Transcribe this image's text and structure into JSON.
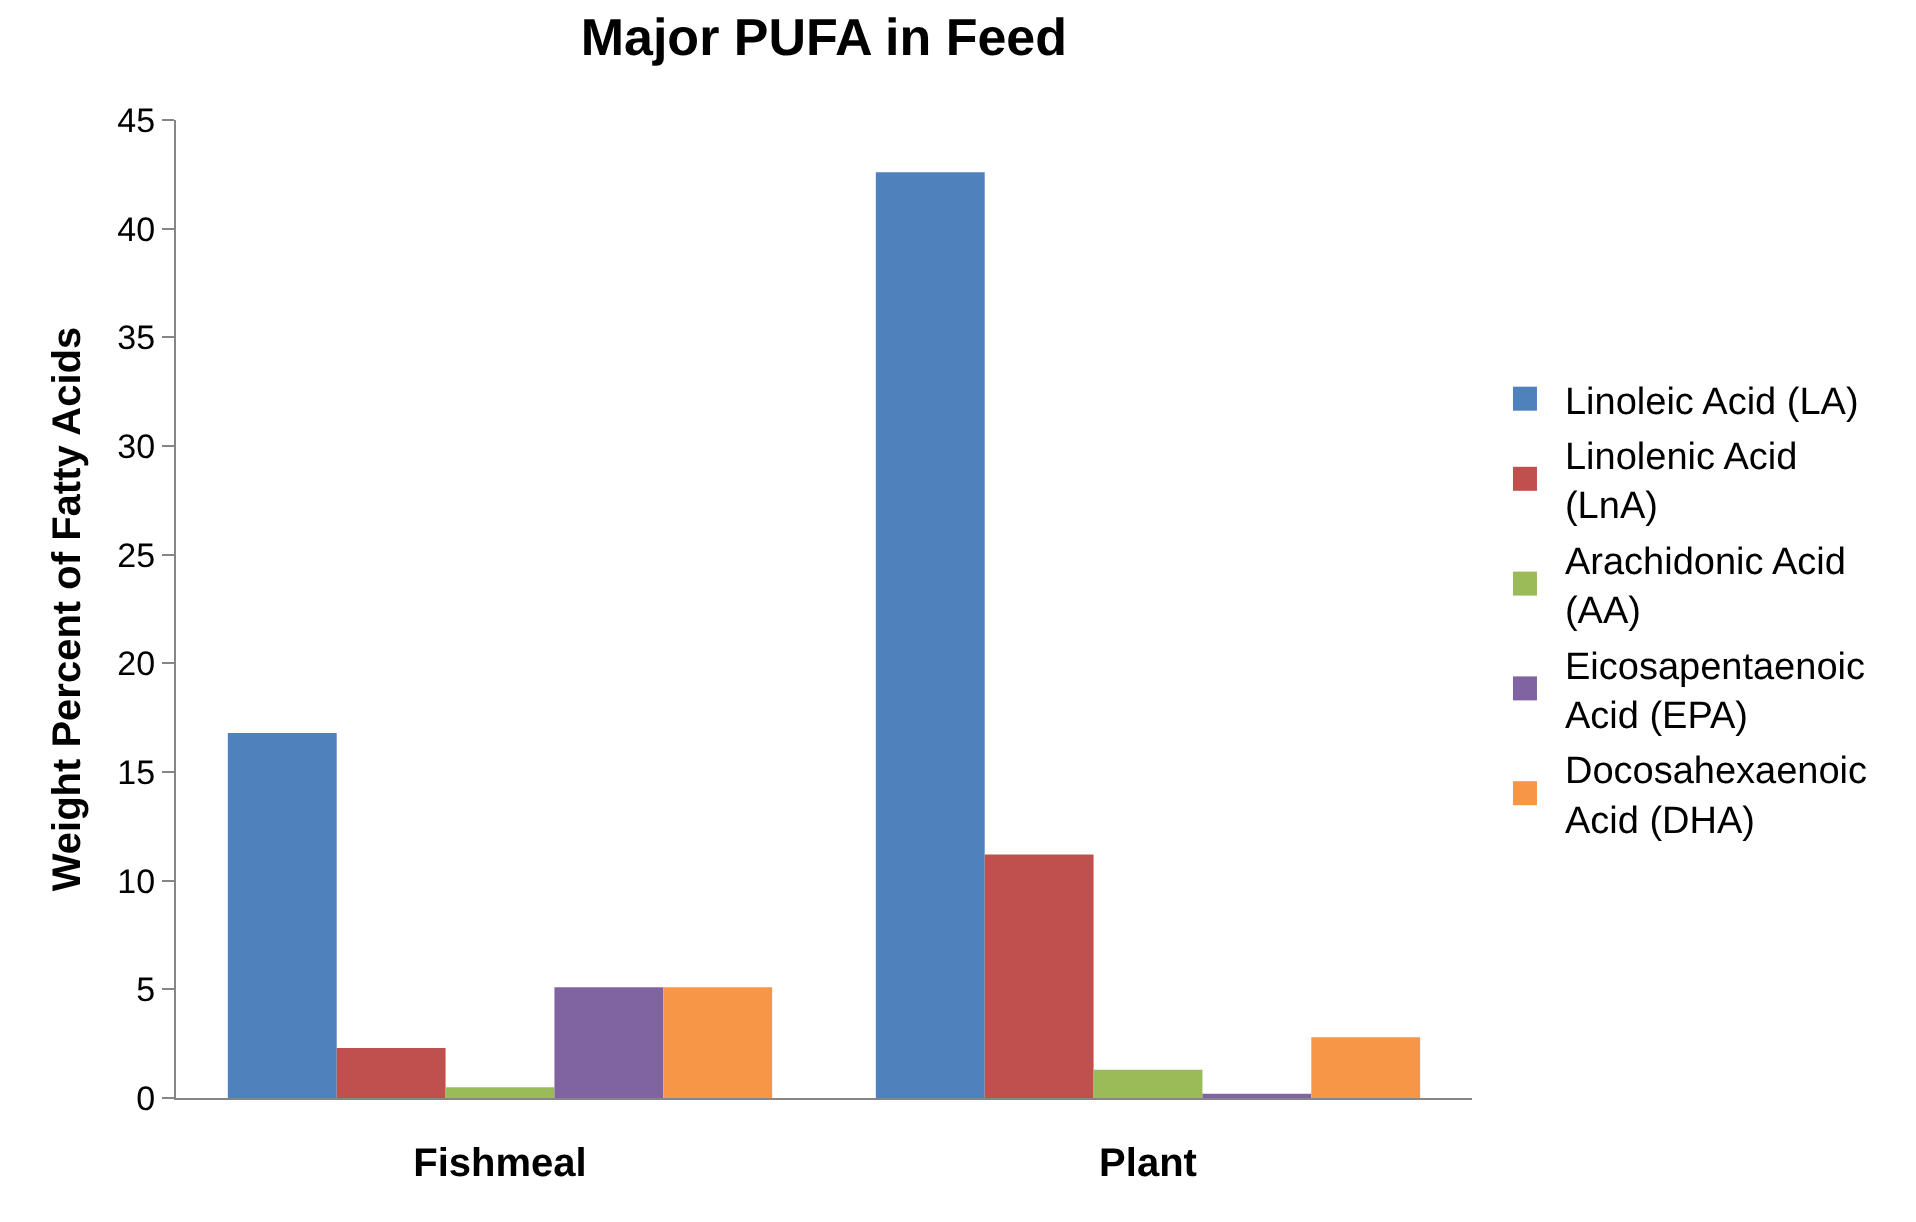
{
  "chart_data": {
    "type": "bar",
    "title": "Major PUFA in Feed",
    "ylabel": "Weight Percent of Fatty Acids",
    "categories": [
      "Fishmeal",
      "Plant"
    ],
    "series": [
      {
        "name": "Linoleic Acid (LA)",
        "color": "#4f81bd",
        "values": [
          16.8,
          42.6
        ]
      },
      {
        "name": "Linolenic Acid (LnA)",
        "color": "#c0504d",
        "values": [
          2.3,
          11.2
        ]
      },
      {
        "name": "Arachidonic Acid (AA)",
        "color": "#9bbb59",
        "values": [
          0.5,
          1.3
        ]
      },
      {
        "name": "Eicosapentaenoic Acid (EPA)",
        "color": "#8064a2",
        "values": [
          5.1,
          0.2
        ]
      },
      {
        "name": "Docosahexaenoic Acid (DHA)",
        "color": "#f79646",
        "values": [
          5.1,
          2.8
        ]
      }
    ],
    "ylim": [
      0,
      45
    ],
    "yticks": [
      0,
      5,
      10,
      15,
      20,
      25,
      30,
      35,
      40,
      45
    ],
    "grid": false,
    "legend": "right"
  }
}
